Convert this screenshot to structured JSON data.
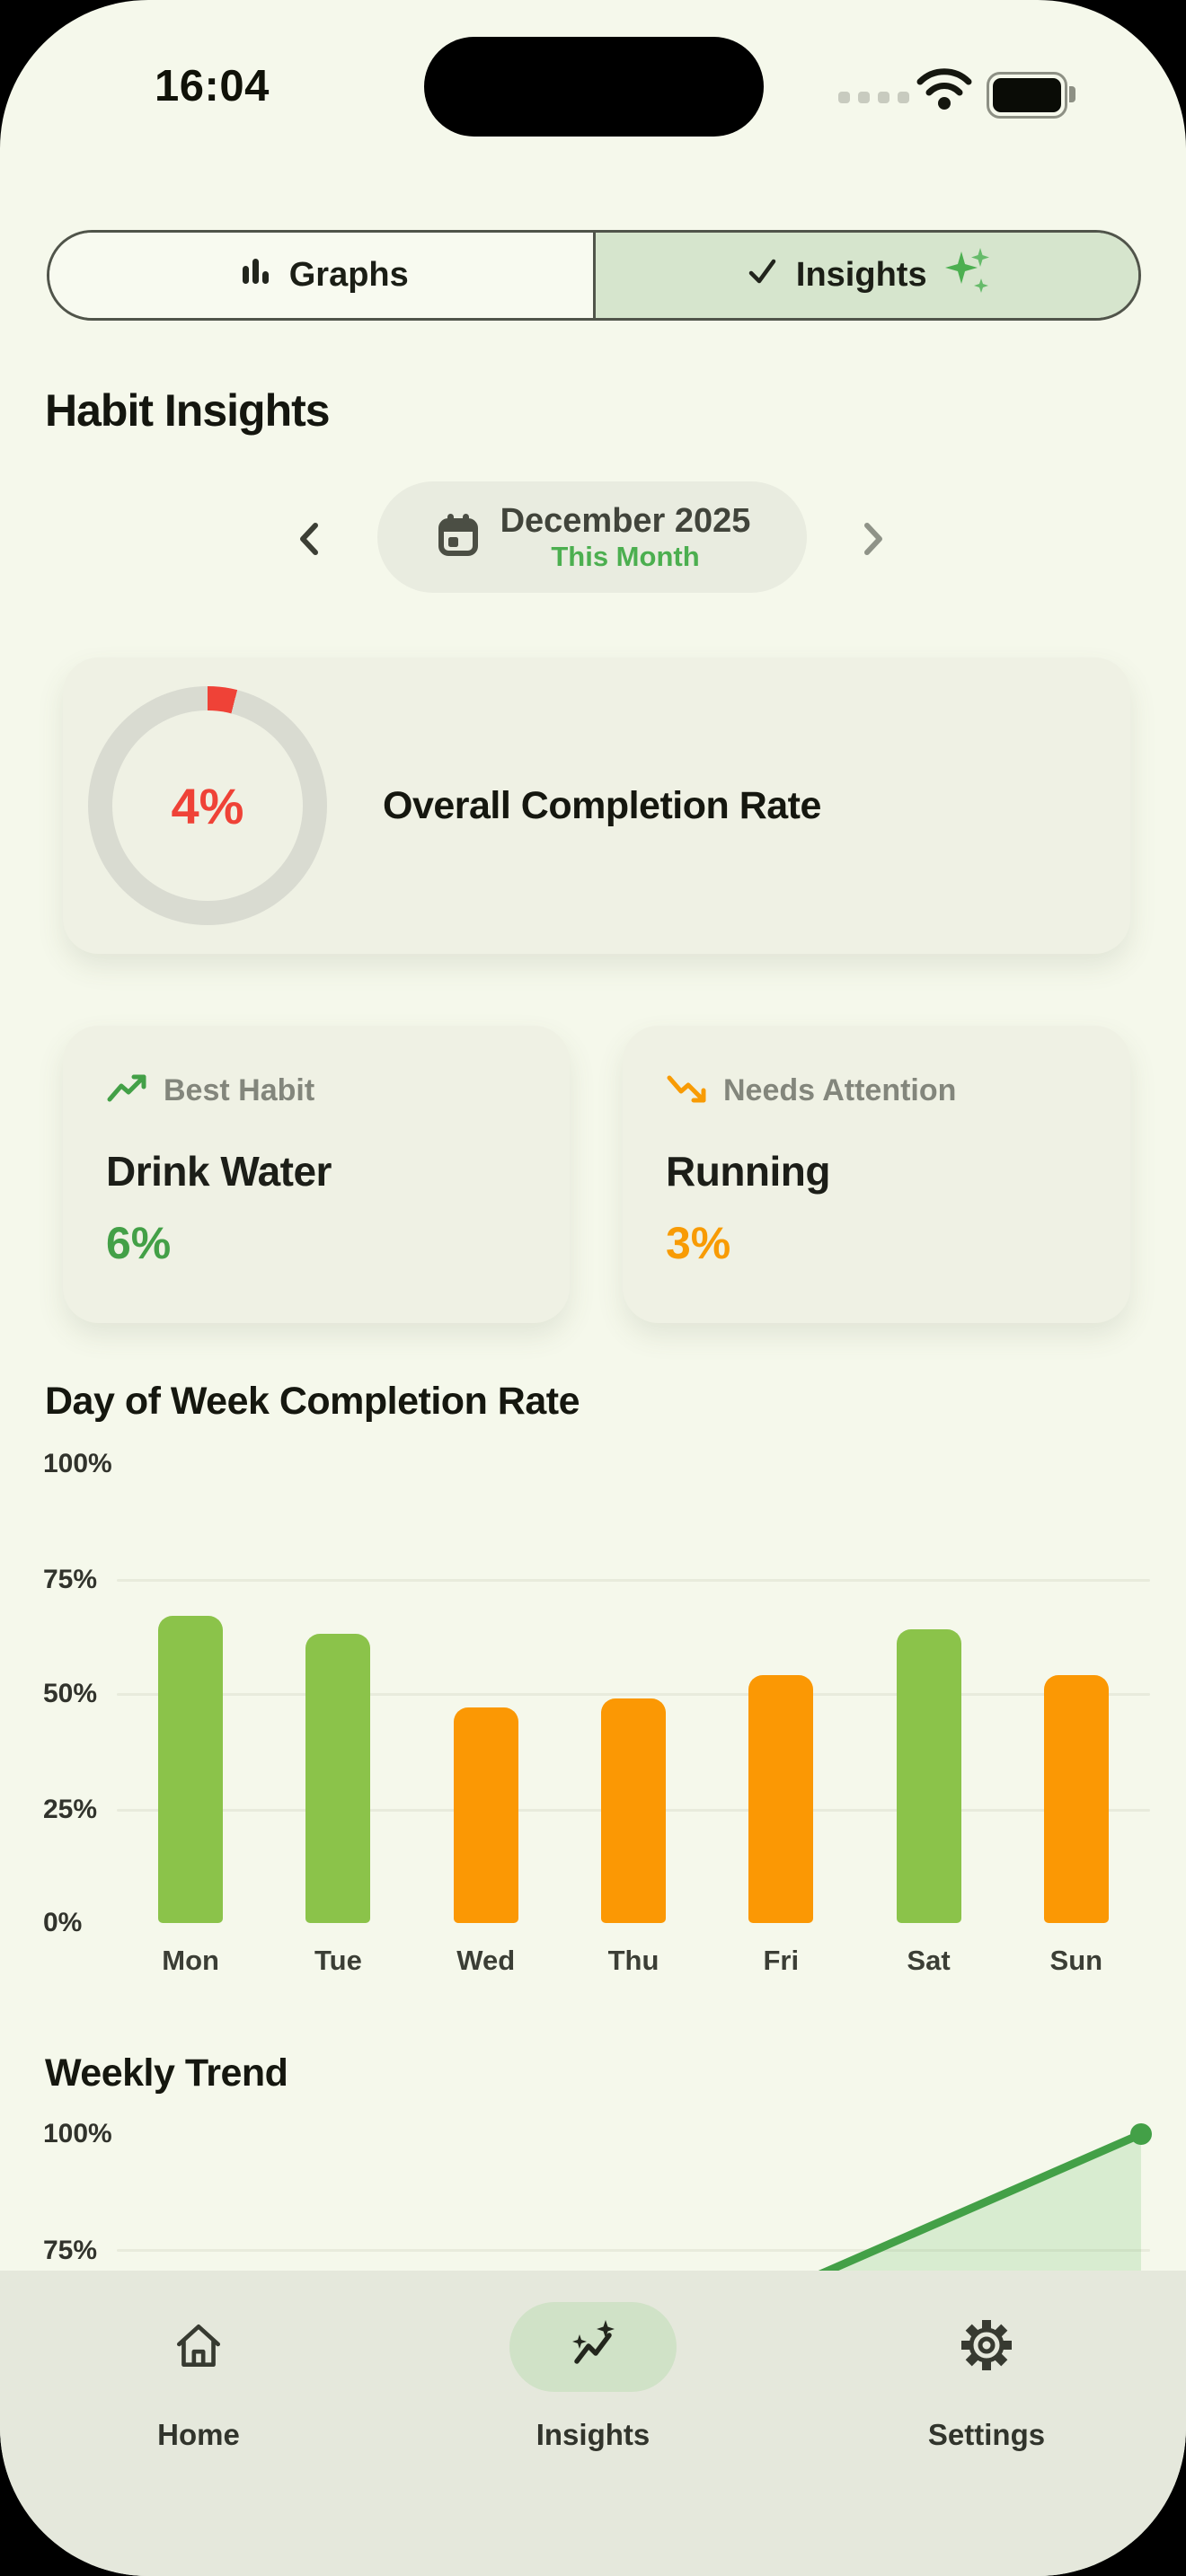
{
  "status_bar": {
    "time": "16:04",
    "signal_dots": 4,
    "wifi_icon": "wifi",
    "battery_icon": "battery-full"
  },
  "segmented": {
    "left": {
      "label": "Graphs",
      "icon": "bar-chart-icon",
      "selected": false
    },
    "right": {
      "label": "Insights",
      "icon": "check-icon",
      "trailing_icon": "sparkles-icon",
      "selected": true
    }
  },
  "page_title": "Habit Insights",
  "month_selector": {
    "prev_icon": "chevron-left",
    "next_icon": "chevron-right",
    "calendar_icon": "calendar-icon",
    "month": "December 2025",
    "sublabel": "This Month"
  },
  "overall": {
    "value": "4%",
    "percent": 4,
    "label": "Overall Completion Rate"
  },
  "stats": {
    "best": {
      "icon": "trending-up-icon",
      "label": "Best Habit",
      "name": "Drink Water",
      "value": "6%"
    },
    "attention": {
      "icon": "trending-down-icon",
      "label": "Needs Attention",
      "name": "Running",
      "value": "3%"
    }
  },
  "chart_data": [
    {
      "type": "bar",
      "title": "Day of Week Completion Rate",
      "categories": [
        "Mon",
        "Tue",
        "Wed",
        "Thu",
        "Fri",
        "Sat",
        "Sun"
      ],
      "values": [
        67,
        63,
        47,
        49,
        54,
        64,
        54
      ],
      "bar_colors": [
        "#8bc34a",
        "#8bc34a",
        "#fb9804",
        "#fb9804",
        "#fb9804",
        "#8bc34a",
        "#fb9804"
      ],
      "ylabel_ticks": [
        "100%",
        "75%",
        "50%",
        "25%",
        "0%"
      ],
      "ylim": [
        0,
        100
      ],
      "gridlines_at": [
        75,
        50,
        25
      ],
      "xlabel": "",
      "ylabel": ""
    },
    {
      "type": "area",
      "title": "Weekly Trend",
      "visible_yticks": [
        "100%",
        "75%"
      ],
      "ylim": [
        0,
        100
      ],
      "gridlines_at": [
        75
      ],
      "series": [
        {
          "name": "completion",
          "visible_points": [
            {
              "value": 68
            },
            {
              "value": 100
            }
          ]
        }
      ],
      "line_color": "#43a047",
      "fill_color": "rgba(76,175,80,0.17)",
      "occluded_by": "bottom navigation bar"
    }
  ],
  "bottom_nav": {
    "items": [
      {
        "label": "Home",
        "icon": "home-icon",
        "active": false
      },
      {
        "label": "Insights",
        "icon": "insights-icon",
        "active": true
      },
      {
        "label": "Settings",
        "icon": "settings-icon",
        "active": false
      }
    ]
  },
  "colors": {
    "background": "#f5f8eb",
    "card": "#eff1e4",
    "nav": "#e5e8dc",
    "segment_selected": "#d6e5cd",
    "pill": "#e9ece0",
    "active_nav_pill": "#d0e2c7",
    "green_accent": "#4caf50",
    "green_bar": "#8bc34a",
    "orange": "#fb9804",
    "red": "#ef4237",
    "ring_track": "#d9dbd1",
    "text_dark": "#15170f",
    "text_gray": "#83867c"
  }
}
